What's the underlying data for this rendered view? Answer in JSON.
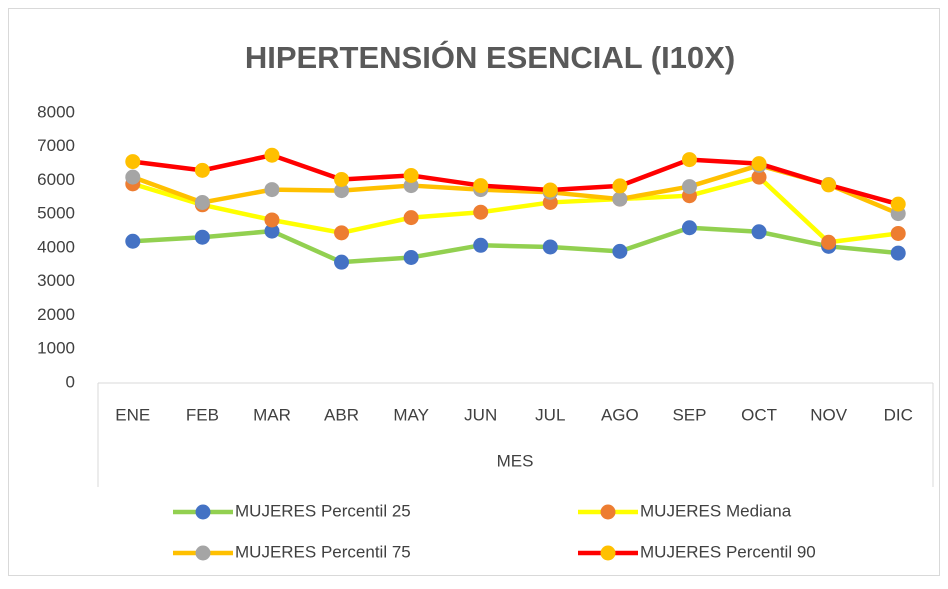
{
  "chart_data": {
    "type": "line",
    "title": "HIPERTENSIÓN ESENCIAL (I10X)",
    "x_label": "MES",
    "categories": [
      "ENE",
      "FEB",
      "MAR",
      "ABR",
      "MAY",
      "JUN",
      "JUL",
      "AGO",
      "SEP",
      "OCT",
      "NOV",
      "DIC"
    ],
    "series": [
      {
        "name": "MUJERES Percentil 25",
        "color": "#92d050",
        "marker_color": "#4472c4",
        "values": [
          4200,
          4320,
          4500,
          3580,
          3720,
          4080,
          4030,
          3900,
          4600,
          4480,
          4050,
          3850
        ]
      },
      {
        "name": "MUJERES Mediana",
        "color": "#ffff00",
        "marker_color": "#ed7d31",
        "values": [
          5900,
          5280,
          4830,
          4450,
          4900,
          5060,
          5350,
          5450,
          5550,
          6100,
          4170,
          4430
        ]
      },
      {
        "name": "MUJERES Percentil 75",
        "color": "#ffc000",
        "marker_color": "#a5a5a5",
        "values": [
          6100,
          5350,
          5730,
          5700,
          5850,
          5730,
          5650,
          5450,
          5820,
          6450,
          5880,
          5020
        ]
      },
      {
        "name": "MUJERES Percentil 90",
        "color": "#ff0000",
        "marker_color": "#ffc000",
        "values": [
          6560,
          6300,
          6750,
          6030,
          6150,
          5850,
          5720,
          5840,
          6620,
          6500,
          5870,
          5300
        ]
      }
    ],
    "ylim": [
      0,
      8000
    ],
    "yticks": [
      0,
      1000,
      2000,
      3000,
      4000,
      5000,
      6000,
      7000,
      8000
    ],
    "grid": false
  }
}
